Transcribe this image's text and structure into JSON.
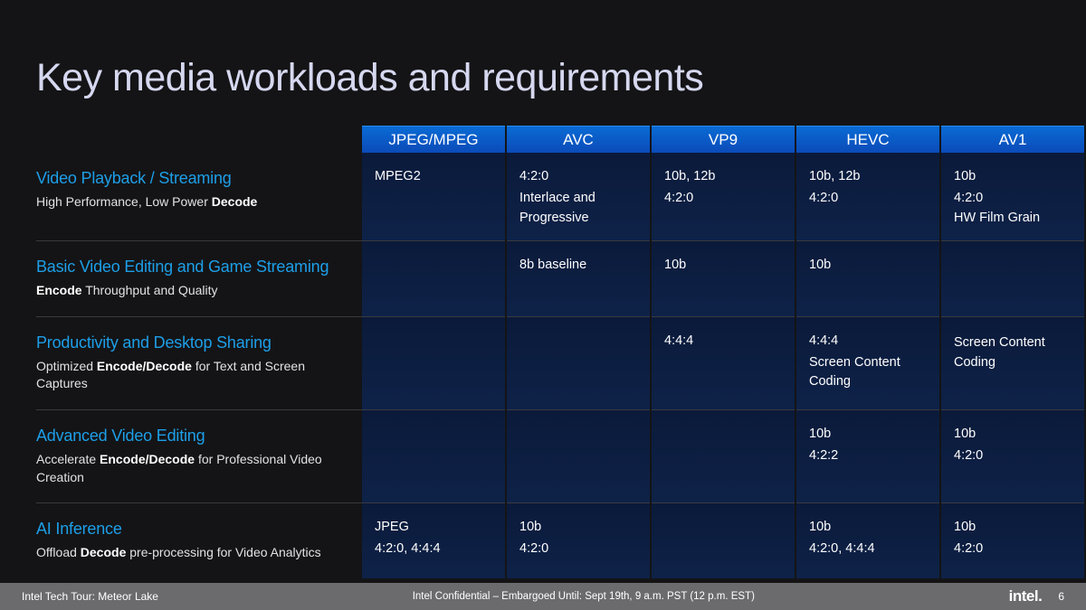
{
  "title": "Key media workloads and requirements",
  "columns": [
    "JPEG/MPEG",
    "AVC",
    "VP9",
    "HEVC",
    "AV1"
  ],
  "rows": [
    {
      "title": "Video Playback / Streaming",
      "sub_pre": "High Performance, Low Power ",
      "sub_bold": "Decode",
      "sub_post": "",
      "cells": [
        {
          "l1": "MPEG2",
          "l2": "",
          "l3": ""
        },
        {
          "l1": "4:2:0",
          "l2": "Interlace and Progressive",
          "l3": ""
        },
        {
          "l1": "10b, 12b",
          "l2": "4:2:0",
          "l3": ""
        },
        {
          "l1": "10b, 12b",
          "l2": "4:2:0",
          "l3": ""
        },
        {
          "l1": "10b",
          "l2": "4:2:0",
          "l3": "HW Film Grain"
        }
      ]
    },
    {
      "title": "Basic Video Editing and Game Streaming",
      "sub_pre": "",
      "sub_bold": "Encode",
      "sub_post": " Throughput and Quality",
      "cells": [
        {
          "l1": "",
          "l2": "",
          "l3": ""
        },
        {
          "l1": "8b baseline",
          "l2": "",
          "l3": ""
        },
        {
          "l1": "10b",
          "l2": "",
          "l3": ""
        },
        {
          "l1": "10b",
          "l2": "",
          "l3": ""
        },
        {
          "l1": "",
          "l2": "",
          "l3": ""
        }
      ]
    },
    {
      "title": "Productivity and Desktop Sharing",
      "sub_pre": "Optimized ",
      "sub_bold": "Encode/Decode",
      "sub_post": " for Text and Screen Captures",
      "cells": [
        {
          "l1": "",
          "l2": "",
          "l3": ""
        },
        {
          "l1": "",
          "l2": "",
          "l3": ""
        },
        {
          "l1": "4:4:4",
          "l2": "",
          "l3": ""
        },
        {
          "l1": "4:4:4",
          "l2": "Screen Content Coding",
          "l3": ""
        },
        {
          "l1": "",
          "l2": "Screen Content Coding",
          "l3": ""
        }
      ]
    },
    {
      "title": "Advanced Video Editing",
      "sub_pre": "Accelerate ",
      "sub_bold": "Encode/Decode",
      "sub_post": " for Professional Video Creation",
      "cells": [
        {
          "l1": "",
          "l2": "",
          "l3": ""
        },
        {
          "l1": "",
          "l2": "",
          "l3": ""
        },
        {
          "l1": "",
          "l2": "",
          "l3": ""
        },
        {
          "l1": "10b",
          "l2": "4:2:2",
          "l3": ""
        },
        {
          "l1": "10b",
          "l2": "4:2:0",
          "l3": ""
        }
      ]
    },
    {
      "title": "AI Inference",
      "sub_pre": "Offload ",
      "sub_bold": "Decode",
      "sub_post": " pre-processing for Video Analytics",
      "cells": [
        {
          "l1": "JPEG",
          "l2": "4:2:0, 4:4:4",
          "l3": ""
        },
        {
          "l1": "10b",
          "l2": "4:2:0",
          "l3": ""
        },
        {
          "l1": "",
          "l2": "",
          "l3": ""
        },
        {
          "l1": "10b",
          "l2": "4:2:0, 4:4:4",
          "l3": ""
        },
        {
          "l1": "10b",
          "l2": "4:2:0",
          "l3": ""
        }
      ]
    }
  ],
  "footer": {
    "left": "Intel Tech Tour:  Meteor Lake",
    "mid": "Intel Confidential – Embargoed Until:  Sept 19th, 9 a.m. PST (12 p.m. EST)",
    "logo": "intel.",
    "page": "6"
  },
  "colors": {
    "bg": "#141416",
    "title": "#d6d8f0",
    "accent": "#1d9fe8",
    "header_grad_top": "#0a6bd4",
    "header_grad_bot": "#0b4bb9",
    "cell_grad_top": "#0b1a3a",
    "cell_grad_bot": "#0e2248",
    "footer_bg": "#6b6b6e",
    "divider": "#3a3a3e"
  }
}
